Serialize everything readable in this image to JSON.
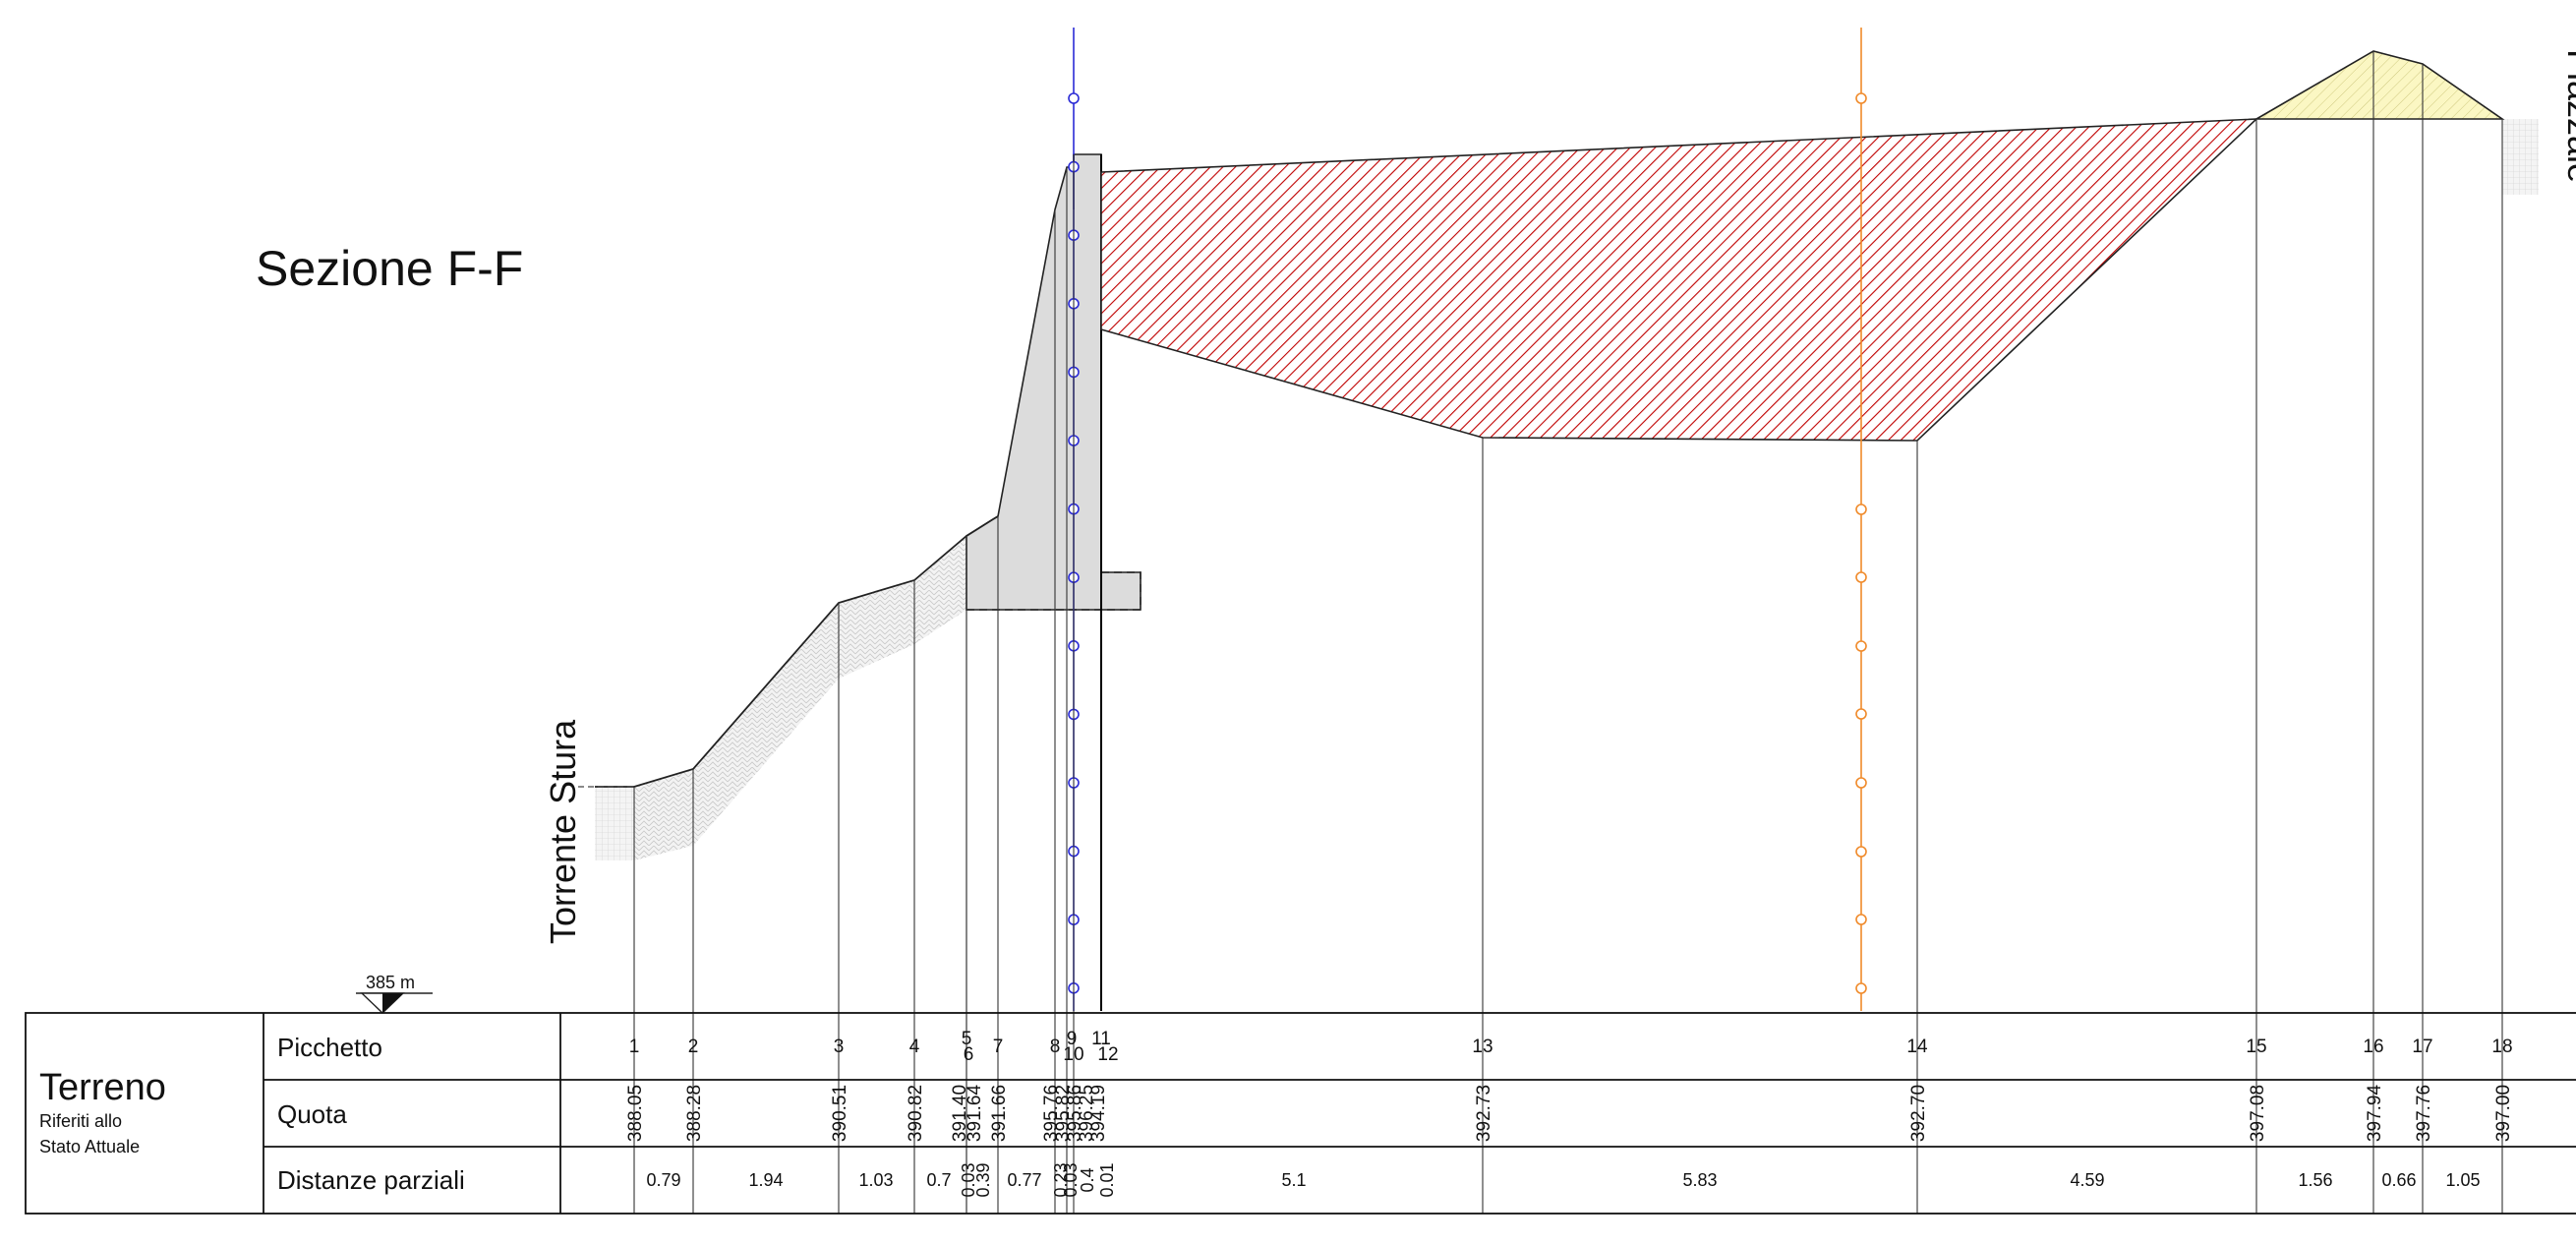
{
  "title": "Sezione F-F",
  "labels": {
    "left_water": "Torrente Stura",
    "right_area": "Piazzale",
    "datum": "385 m"
  },
  "table": {
    "group_title": "Terreno",
    "group_subtitle_1": "Riferiti allo",
    "group_subtitle_2": "Stato Attuale",
    "row_picchetto": "Picchetto",
    "row_quota": "Quota",
    "row_distanze": "Distanze parziali"
  },
  "stations": [
    {
      "id": "1",
      "quota": "388.05"
    },
    {
      "id": "2",
      "quota": "388.28"
    },
    {
      "id": "3",
      "quota": "390.51"
    },
    {
      "id": "4",
      "quota": "390.82"
    },
    {
      "id": "5",
      "quota": "391.40"
    },
    {
      "id": "6",
      "quota": "391.64"
    },
    {
      "id": "7",
      "quota": "391.66"
    },
    {
      "id": "8",
      "quota": "395.76"
    },
    {
      "id": "9",
      "quota": "395.82"
    },
    {
      "id": "10",
      "quota": "395.86"
    },
    {
      "id": "11",
      "quota": "396.25"
    },
    {
      "id": "12",
      "quota": "394.19"
    },
    {
      "id": "13",
      "quota": "392.73"
    },
    {
      "id": "14",
      "quota": "392.70"
    },
    {
      "id": "15",
      "quota": "397.08"
    },
    {
      "id": "16",
      "quota": "397.94"
    },
    {
      "id": "17",
      "quota": "397.76"
    },
    {
      "id": "18",
      "quota": "397.00"
    }
  ],
  "distances": [
    "0.79",
    "1.94",
    "1.03",
    "0.7",
    "0.03",
    "0.39",
    "0.77",
    "0.23",
    "0.03",
    "0.4",
    "0.01",
    "5.1",
    "5.83",
    "4.59",
    "1.56",
    "0.66",
    "1.05"
  ],
  "colors": {
    "fill_zone": "#c00000",
    "yellow_mound": "#fbf7c3",
    "wall_gray": "#dcdcdc",
    "blue_axis": "#2b2bd6",
    "orange_axis": "#f08a2a"
  }
}
